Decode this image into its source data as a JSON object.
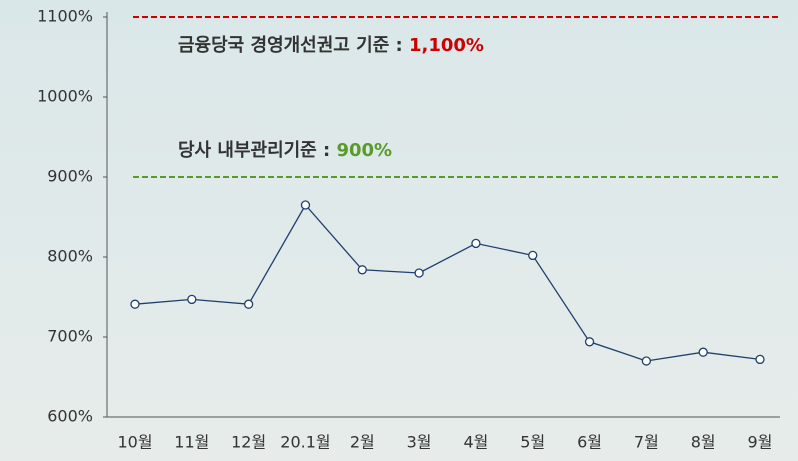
{
  "chart_data": {
    "type": "line",
    "categories": [
      "10월",
      "11월",
      "12월",
      "20.1월",
      "2월",
      "3월",
      "4월",
      "5월",
      "6월",
      "7월",
      "8월",
      "9월"
    ],
    "series": [
      {
        "color": "#1f3f6e",
        "values": [
          741,
          747,
          741,
          865,
          784,
          780,
          817,
          802,
          694,
          670,
          681,
          672
        ]
      }
    ],
    "ylim": [
      600,
      1100
    ],
    "yticks": [
      {
        "value": 600,
        "label": "600%"
      },
      {
        "value": 700,
        "label": "700%"
      },
      {
        "value": 800,
        "label": "800%"
      },
      {
        "value": 900,
        "label": "900%"
      },
      {
        "value": 1000,
        "label": "1000%"
      },
      {
        "value": 1100,
        "label": "1100%"
      }
    ],
    "reference_lines": [
      {
        "label": "금융당국 경영개선권고 기준 : ",
        "value": 1100,
        "value_label": "1,100%",
        "color": "#cc0000"
      },
      {
        "label": "당사 내부관리기준 : ",
        "value": 900,
        "value_label": "900%",
        "color": "#5a9a2a"
      }
    ]
  }
}
